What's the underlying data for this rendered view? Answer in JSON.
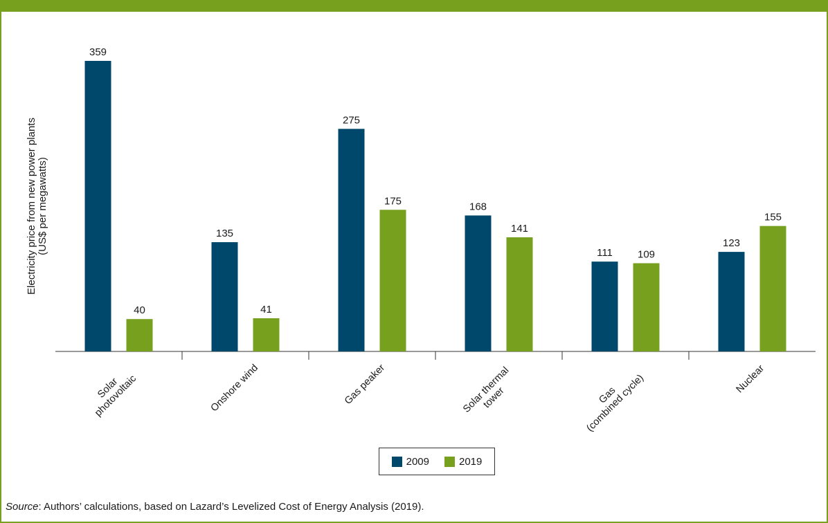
{
  "chart_data": {
    "type": "bar",
    "ylabel": [
      "Electricity price from new power plants",
      "(US$ per megawatts)"
    ],
    "categories": [
      [
        "Solar",
        "photovoltaic"
      ],
      [
        "Onshore wind"
      ],
      [
        "Gas peaker"
      ],
      [
        "Solar thermal",
        "tower"
      ],
      [
        "Gas",
        "(combined cycle)"
      ],
      [
        "Nuclear"
      ]
    ],
    "series": [
      {
        "name": "2009",
        "color": "#00486b",
        "values": [
          359,
          135,
          275,
          168,
          111,
          123
        ]
      },
      {
        "name": "2019",
        "color": "#76a01e",
        "values": [
          40,
          41,
          175,
          141,
          109,
          155
        ]
      }
    ],
    "ylim": [
      0,
      359
    ],
    "grid": false,
    "legend_position": "bottom-center"
  },
  "source": {
    "label": "Source",
    "text": ": Authors’ calculations, based on Lazard’s Levelized Cost of Energy Analysis (2019)."
  }
}
